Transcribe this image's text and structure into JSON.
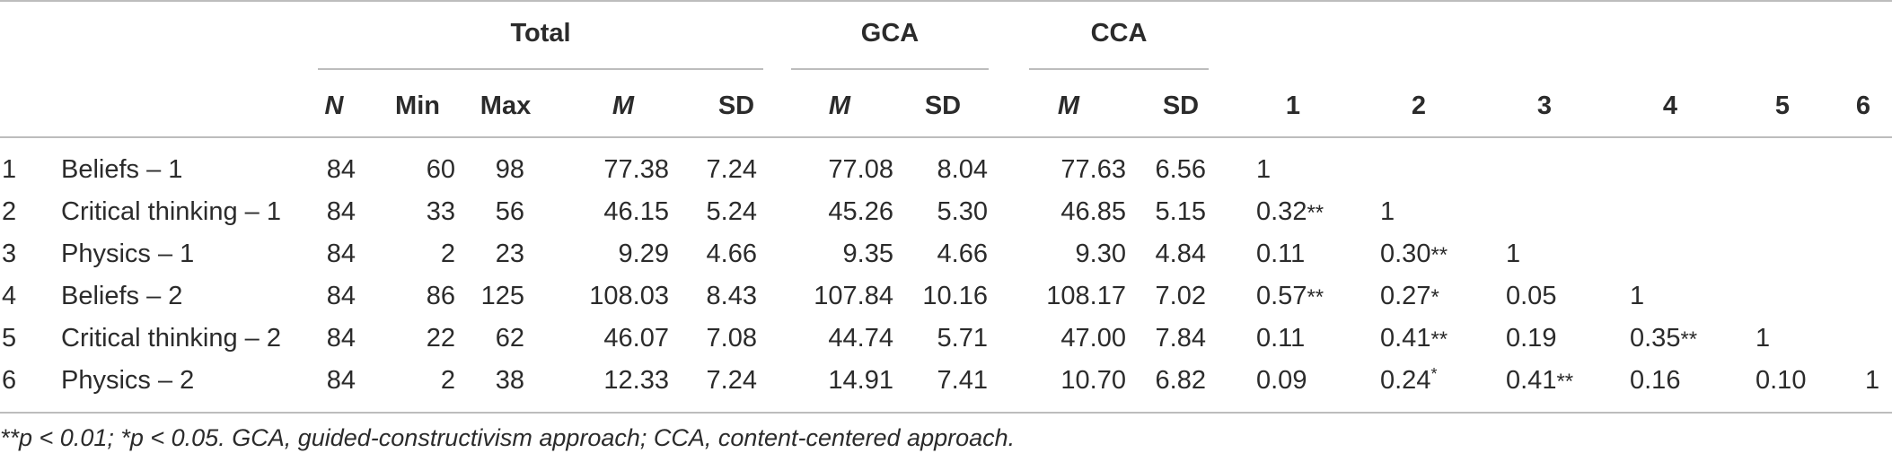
{
  "table": {
    "group_headers": {
      "total": "Total",
      "gca": "GCA",
      "cca": "CCA"
    },
    "col_headers": [
      "N",
      "Min",
      "Max",
      "M",
      "SD",
      "M",
      "SD",
      "M",
      "SD",
      "1",
      "2",
      "3",
      "4",
      "5",
      "6"
    ],
    "rows": [
      {
        "num": "1",
        "label": "Beliefs – 1",
        "vals": [
          "84",
          "60",
          "98",
          "77.38",
          "7.24",
          "77.08",
          "8.04",
          "77.63",
          "6.56"
        ],
        "corr": [
          {
            "v": "1",
            "s": ""
          }
        ]
      },
      {
        "num": "2",
        "label": "Critical thinking – 1",
        "vals": [
          "84",
          "33",
          "56",
          "46.15",
          "5.24",
          "45.26",
          "5.30",
          "46.85",
          "5.15"
        ],
        "corr": [
          {
            "v": "0.32",
            "s": "**"
          },
          {
            "v": "1",
            "s": ""
          }
        ]
      },
      {
        "num": "3",
        "label": "Physics – 1",
        "vals": [
          "84",
          "2",
          "23",
          "9.29",
          "4.66",
          "9.35",
          "4.66",
          "9.30",
          "4.84"
        ],
        "corr": [
          {
            "v": "0.11",
            "s": ""
          },
          {
            "v": "0.30",
            "s": "**"
          },
          {
            "v": "1",
            "s": ""
          }
        ]
      },
      {
        "num": "4",
        "label": "Beliefs – 2",
        "vals": [
          "84",
          "86",
          "125",
          "108.03",
          "8.43",
          "107.84",
          "10.16",
          "108.17",
          "7.02"
        ],
        "corr": [
          {
            "v": "0.57",
            "s": "**"
          },
          {
            "v": "0.27",
            "s": "*"
          },
          {
            "v": "0.05",
            "s": ""
          },
          {
            "v": "1",
            "s": ""
          }
        ]
      },
      {
        "num": "5",
        "label": "Critical thinking – 2",
        "vals": [
          "84",
          "22",
          "62",
          "46.07",
          "7.08",
          "44.74",
          "5.71",
          "47.00",
          "7.84"
        ],
        "corr": [
          {
            "v": "0.11",
            "s": ""
          },
          {
            "v": "0.41",
            "s": "**"
          },
          {
            "v": "0.19",
            "s": ""
          },
          {
            "v": "0.35",
            "s": "**"
          },
          {
            "v": "1",
            "s": ""
          }
        ]
      },
      {
        "num": "6",
        "label": "Physics – 2",
        "vals": [
          "84",
          "2",
          "38",
          "12.33",
          "7.24",
          "14.91",
          "7.41",
          "10.70",
          "6.82"
        ],
        "corr": [
          {
            "v": "0.09",
            "s": ""
          },
          {
            "v": "0.24",
            "s": "*",
            "sup": true
          },
          {
            "v": "0.41",
            "s": "**"
          },
          {
            "v": "0.16",
            "s": ""
          },
          {
            "v": "0.10",
            "s": ""
          },
          {
            "v": "1",
            "s": ""
          }
        ]
      }
    ]
  },
  "footnote": "**p < 0.01; *p < 0.05. GCA, guided-constructivism approach; CCA, content-centered approach."
}
